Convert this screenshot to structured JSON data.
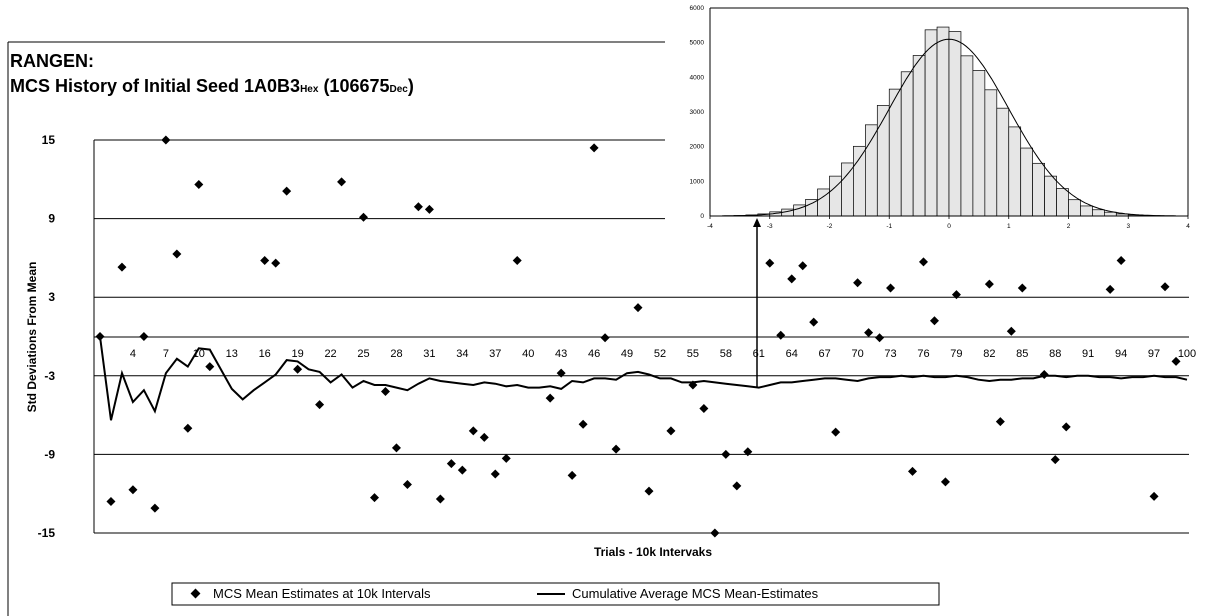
{
  "title_line1": "RANGEN:",
  "title_line2_main": "MCS History of Initial Seed 1A0B3",
  "title_line2_sub1": "Hex",
  "title_line2_mid": " (106675",
  "title_line2_sub2": "Dec",
  "title_line2_end": ")",
  "chart_data": [
    {
      "type": "scatter",
      "title": "RANGEN: MCS History of Initial Seed 1A0B3Hex (106675Dec)",
      "xlabel": "Trials - 10k Intervaks",
      "ylabel": "Std Deviations From Mean",
      "xlim": [
        1,
        100
      ],
      "ylim": [
        -15,
        15
      ],
      "yticks": [
        -15,
        -9,
        -3,
        3,
        9,
        15
      ],
      "xtick_labels": [
        "4",
        "7",
        "10",
        "13",
        "16",
        "19",
        "22",
        "25",
        "28",
        "31",
        "34",
        "37",
        "40",
        "43",
        "46",
        "49",
        "52",
        "55",
        "58",
        "61",
        "64",
        "67",
        "70",
        "73",
        "76",
        "79",
        "82",
        "85",
        "88",
        "91",
        "94",
        "97",
        "100"
      ],
      "xtick_positions": [
        4,
        7,
        10,
        13,
        16,
        19,
        22,
        25,
        28,
        31,
        34,
        37,
        40,
        43,
        46,
        49,
        52,
        55,
        58,
        61,
        64,
        67,
        70,
        73,
        76,
        79,
        82,
        85,
        88,
        91,
        94,
        97,
        100
      ],
      "grid": true,
      "legend_position": "bottom",
      "marker_color": "#000000",
      "line_color": "#000000",
      "series": [
        {
          "name": "MCS Mean Estimates at 10k Intervals",
          "kind": "scatter",
          "x": [
            1,
            2,
            3,
            4,
            5,
            6,
            7,
            8,
            9,
            10,
            11,
            16,
            17,
            18,
            19,
            21,
            23,
            25,
            26,
            27,
            28,
            29,
            30,
            31,
            32,
            33,
            34,
            35,
            36,
            37,
            38,
            39,
            42,
            43,
            44,
            45,
            46,
            47,
            48,
            50,
            51,
            53,
            55,
            56,
            57,
            58,
            59,
            60,
            62,
            63,
            64,
            65,
            66,
            68,
            70,
            71,
            72,
            73,
            75,
            76,
            77,
            78,
            79,
            82,
            83,
            84,
            85,
            87,
            88,
            89,
            93,
            94,
            97,
            98,
            99
          ],
          "y": [
            0,
            -12.6,
            5.3,
            -11.7,
            0,
            -13.1,
            15,
            6.3,
            -7,
            11.6,
            -2.3,
            5.8,
            5.6,
            11.1,
            -2.5,
            -5.2,
            11.8,
            9.1,
            -12.3,
            -4.2,
            -8.5,
            -11.3,
            9.9,
            9.7,
            -12.4,
            -9.7,
            -10.2,
            -7.2,
            -7.7,
            -10.5,
            -9.3,
            5.8,
            -4.7,
            -2.8,
            -10.6,
            -6.7,
            14.4,
            -0.1,
            -8.6,
            2.2,
            -11.8,
            -7.2,
            -3.7,
            -5.5,
            -15,
            -9,
            -11.4,
            -8.8,
            5.6,
            0.1,
            4.4,
            5.4,
            1.1,
            -7.3,
            4.1,
            0.3,
            -0.1,
            3.7,
            -10.3,
            5.7,
            1.2,
            -11.1,
            3.2,
            4,
            -6.5,
            0.4,
            3.7,
            -2.9,
            -9.4,
            -6.9,
            3.6,
            5.8,
            -12.2,
            3.8,
            -1.9
          ]
        },
        {
          "name": "Cumulative Average MCS Mean-Estimates",
          "kind": "line",
          "x": [
            1,
            2,
            3,
            4,
            5,
            6,
            7,
            8,
            9,
            10,
            11,
            12,
            13,
            14,
            15,
            16,
            17,
            18,
            19,
            20,
            21,
            22,
            23,
            24,
            25,
            26,
            27,
            28,
            29,
            30,
            31,
            32,
            33,
            34,
            35,
            36,
            37,
            38,
            39,
            40,
            41,
            42,
            43,
            44,
            45,
            46,
            47,
            48,
            49,
            50,
            51,
            52,
            53,
            54,
            55,
            56,
            57,
            58,
            59,
            60,
            61,
            62,
            63,
            64,
            65,
            66,
            67,
            68,
            69,
            70,
            71,
            72,
            73,
            74,
            75,
            76,
            77,
            78,
            79,
            80,
            81,
            82,
            83,
            84,
            85,
            86,
            87,
            88,
            89,
            90,
            91,
            92,
            93,
            94,
            95,
            96,
            97,
            98,
            99,
            100
          ],
          "y": [
            0,
            -6.4,
            -2.8,
            -5,
            -4.1,
            -5.7,
            -2.8,
            -1.7,
            -2.3,
            -0.9,
            -1,
            -2.5,
            -4,
            -4.8,
            -4.1,
            -3.5,
            -2.9,
            -1.8,
            -1.9,
            -2.5,
            -2.7,
            -3.5,
            -2.9,
            -3.9,
            -3.4,
            -3.7,
            -3.7,
            -3.9,
            -4.1,
            -3.6,
            -3.2,
            -3.4,
            -3.5,
            -3.6,
            -3.7,
            -3.5,
            -3.6,
            -3.8,
            -3.7,
            -3.9,
            -3.9,
            -3.8,
            -4,
            -3.4,
            -3.5,
            -3.2,
            -3.2,
            -3.3,
            -2.8,
            -2.7,
            -2.9,
            -3.2,
            -3.2,
            -3.5,
            -3.5,
            -3.4,
            -3.5,
            -3.6,
            -3.7,
            -3.8,
            -3.9,
            -3.7,
            -3.5,
            -3.5,
            -3.4,
            -3.3,
            -3.2,
            -3.2,
            -3.3,
            -3.4,
            -3.2,
            -3.1,
            -3.1,
            -3,
            -3.1,
            -3,
            -3.1,
            -3.1,
            -3,
            -3.1,
            -3.3,
            -3.4,
            -3.3,
            -3.3,
            -3.2,
            -3.2,
            -3,
            -3,
            -3.1,
            -3,
            -3,
            -3.1,
            -3.1,
            -3.2,
            -3.1,
            -3.1,
            -3,
            -3.1,
            -3.1,
            -3.3
          ]
        }
      ]
    },
    {
      "type": "bar",
      "title": "",
      "xlim": [
        -4,
        4
      ],
      "ylim": [
        0,
        6000
      ],
      "xticks": [
        -4,
        -3,
        -2,
        -1,
        0,
        1,
        2,
        3,
        4
      ],
      "yticks": [
        0,
        1000,
        2000,
        3000,
        4000,
        5000,
        6000
      ],
      "bin_width": 0.2,
      "bar_fill": "#e6e6e6",
      "curve": "normal",
      "bin_centers": [
        -3.5,
        -3.3,
        -3.1,
        -2.9,
        -2.7,
        -2.5,
        -2.3,
        -2.1,
        -1.9,
        -1.7,
        -1.5,
        -1.3,
        -1.1,
        -0.9,
        -0.7,
        -0.5,
        -0.3,
        -0.1,
        0.1,
        0.3,
        0.5,
        0.7,
        0.9,
        1.1,
        1.3,
        1.5,
        1.7,
        1.9,
        2.1,
        2.3,
        2.5,
        2.7,
        2.9,
        3.1,
        3.3,
        3.5
      ],
      "values": [
        15,
        30,
        60,
        120,
        200,
        320,
        480,
        780,
        1150,
        1530,
        2010,
        2630,
        3190,
        3660,
        4160,
        4630,
        5370,
        5450,
        5320,
        4620,
        4200,
        3640,
        3110,
        2570,
        1960,
        1520,
        1150,
        790,
        470,
        290,
        180,
        110,
        60,
        30,
        15,
        10
      ]
    }
  ],
  "legend": {
    "scatter_label": "MCS Mean Estimates at 10k Intervals",
    "line_label": "Cumulative Average MCS Mean-Estimates"
  }
}
